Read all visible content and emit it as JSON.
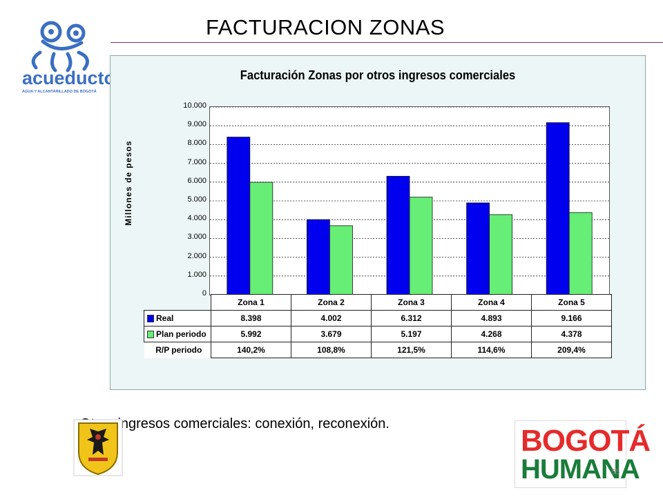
{
  "slide": {
    "title": "FACTURACION ZONAS",
    "note": "Otros ingresos comerciales: conexión, reconexión.",
    "page_number": "55",
    "logo_text": "acueducto",
    "logo_subtext": "AGUA Y ALCANTARILLADO DE BOGOTÁ",
    "bogota_logo_line1": "BOGOTÁ",
    "bogota_logo_line2": "HUMANA"
  },
  "colors": {
    "real": "#0000ee",
    "plan": "#66ee77",
    "title_rule": "#7a2b5e",
    "panel_bg": "#ecf6f6"
  },
  "chart_data": {
    "type": "bar",
    "title": "Facturación Zonas por otros ingresos comerciales",
    "ylabel": "Millones de pesos",
    "xlabel": "",
    "ylim": [
      0,
      10000
    ],
    "yticks": [
      "0",
      "1.000",
      "2.000",
      "3.000",
      "4.000",
      "5.000",
      "6.000",
      "7.000",
      "8.000",
      "9.000",
      "10.000"
    ],
    "categories": [
      "Zona 1",
      "Zona 2",
      "Zona 3",
      "Zona 4",
      "Zona 5"
    ],
    "series": [
      {
        "name": "Real",
        "values": [
          8398,
          4002,
          6312,
          4893,
          9166
        ],
        "labels": [
          "8.398",
          "4.002",
          "6.312",
          "4.893",
          "9.166"
        ]
      },
      {
        "name": "Plan periodo",
        "values": [
          5992,
          3679,
          5197,
          4268,
          4378
        ],
        "labels": [
          "5.992",
          "3.679",
          "5.197",
          "4.268",
          "4.378"
        ]
      }
    ],
    "ratio_row": {
      "name": "R/P periodo",
      "values": [
        "140,2%",
        "108,8%",
        "121,5%",
        "114,6%",
        "209,4%"
      ]
    },
    "grid": true,
    "legend": "data-table"
  }
}
